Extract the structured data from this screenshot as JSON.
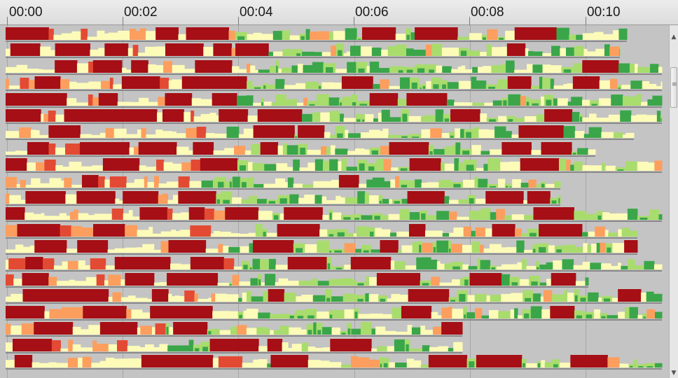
{
  "ruler": {
    "ticks": [
      "00:00",
      "00:02",
      "00:04",
      "00:06",
      "00:08",
      "00:10"
    ]
  },
  "timeline": {
    "minutes_visible": 11.5,
    "tick_step_minutes": 2,
    "track_count": 21,
    "levels": [
      "stopped",
      "slow",
      "medium-slow",
      "medium",
      "fast",
      "very-fast"
    ],
    "colors": {
      "stopped": "#a50f15",
      "slow": "#e34a33",
      "medium_slow": "#fc9e5e",
      "medium": "#fdfbb8",
      "fast": "#a8dc6c",
      "very_fast": "#3aa649",
      "background": "#c4c4c4"
    }
  },
  "scrollbar": {
    "up_icon": "arrow-up",
    "down_icon": "arrow-down",
    "thumb_grip_icon": "grip-lines"
  }
}
